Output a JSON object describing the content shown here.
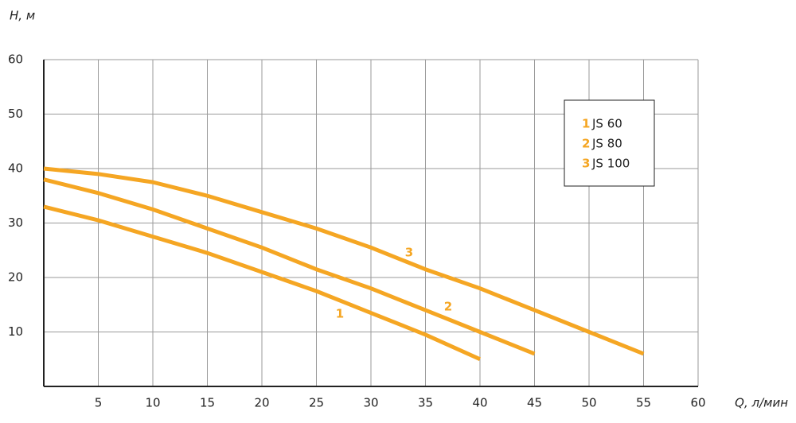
{
  "chart_data": {
    "type": "line",
    "y_label": "H, м",
    "x_label": "Q, л/мин",
    "xlim": [
      0,
      60
    ],
    "ylim": [
      0,
      60
    ],
    "xticks": [
      5,
      10,
      15,
      20,
      25,
      30,
      35,
      40,
      45,
      50,
      55,
      60
    ],
    "yticks": [
      10,
      20,
      30,
      40,
      50,
      60
    ],
    "grid": true,
    "legend": "upper right",
    "series": [
      {
        "label": "1",
        "name": "JS 60",
        "color": "#f5a623",
        "x": [
          0,
          5,
          10,
          15,
          20,
          25,
          30,
          35,
          40
        ],
        "values": [
          33,
          30.5,
          27.5,
          24.5,
          21,
          17.5,
          13.5,
          9.5,
          5
        ]
      },
      {
        "label": "2",
        "name": "JS 80",
        "color": "#f5a623",
        "x": [
          0,
          5,
          10,
          15,
          20,
          25,
          30,
          35,
          40,
          45
        ],
        "values": [
          38,
          35.5,
          32.5,
          29,
          25.5,
          21.5,
          18,
          14,
          10,
          6
        ]
      },
      {
        "label": "3",
        "name": "JS 100",
        "color": "#f5a623",
        "x": [
          0,
          5,
          10,
          15,
          20,
          25,
          30,
          35,
          40,
          45,
          50,
          55
        ],
        "values": [
          40,
          39,
          37.5,
          35,
          32,
          29,
          25.5,
          21.5,
          18,
          14,
          10,
          6
        ]
      }
    ]
  }
}
